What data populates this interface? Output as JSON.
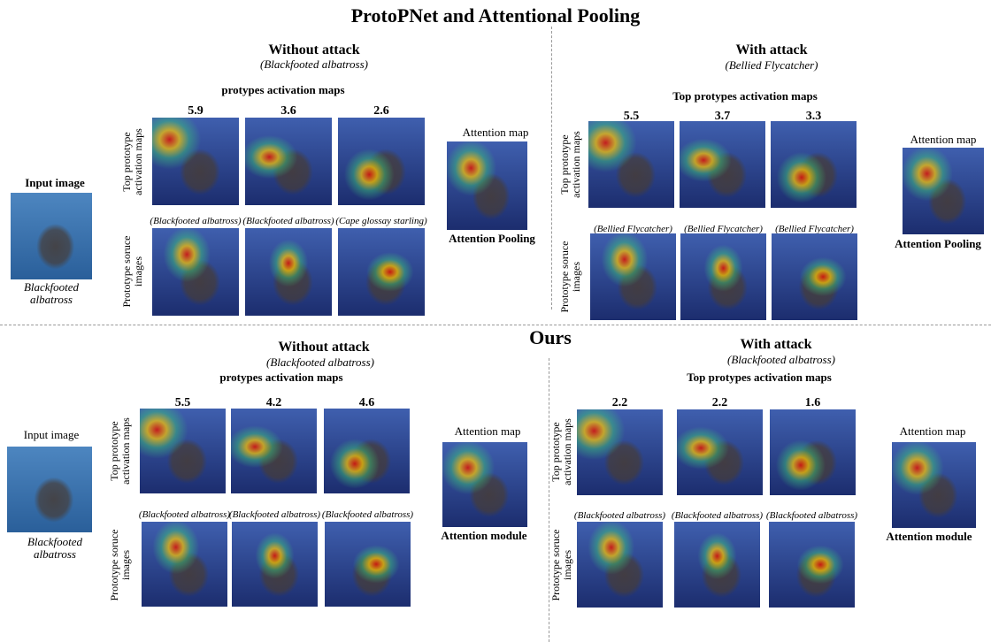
{
  "title": "ProtoPNet and Attentional Pooling",
  "sections": [
    {
      "title": null,
      "input": {
        "label": "Input image",
        "caption": "Blackfooted albatross"
      },
      "panels": [
        {
          "header": "Without attack",
          "subtitle": "(Blackfooted  albatross)",
          "maps_label": "protypes activation maps",
          "scores": [
            5.9,
            3.6,
            2.6
          ],
          "row_labels": [
            "Top prototype activation maps",
            "Prototype soruce images"
          ],
          "sources": [
            "(Blackfooted  albatross)",
            "(Blackfooted  albatross)",
            "(Cape glossay starling)"
          ],
          "attention_label": "Attention map",
          "attention_caption": "Attention Pooling"
        },
        {
          "header": "With attack",
          "subtitle": "(Bellied Flycatcher)",
          "maps_label": "Top protypes activation maps",
          "scores": [
            5.5,
            3.7,
            3.3
          ],
          "row_labels": [
            "Top prototype activation maps",
            "Prototype soruce images"
          ],
          "sources": [
            "(Bellied Flycatcher)",
            "(Bellied Flycatcher)",
            "(Bellied Flycatcher)"
          ],
          "attention_label": "Attention map",
          "attention_caption": "Attention Pooling"
        }
      ]
    },
    {
      "title": "Ours",
      "input": {
        "label": "Input image",
        "caption": "Blackfooted albatross"
      },
      "panels": [
        {
          "header": "Without attack",
          "subtitle": "(Blackfooted  albatross)",
          "maps_label": "protypes activation maps",
          "scores": [
            5.5,
            4.2,
            4.6
          ],
          "row_labels": [
            "Top prototype activation maps",
            "Prototype soruce images"
          ],
          "sources": [
            "(Blackfooted  albatross)",
            "(Blackfooted  albatross)",
            "(Blackfooted albatross)"
          ],
          "attention_label": "Attention map",
          "attention_caption": "Attention module"
        },
        {
          "header": "With attack",
          "subtitle": "(Blackfooted  albatross)",
          "maps_label": "Top protypes activation maps",
          "scores": [
            2.2,
            2.2,
            1.6
          ],
          "row_labels": [
            "Top prototype activation maps",
            "Prototype soruce images"
          ],
          "sources": [
            "(Blackfooted  albatross)",
            "(Blackfooted albatross)",
            "(Blackfooted albatross)"
          ],
          "attention_label": "Attention map",
          "attention_caption": "Attention module"
        }
      ]
    }
  ]
}
